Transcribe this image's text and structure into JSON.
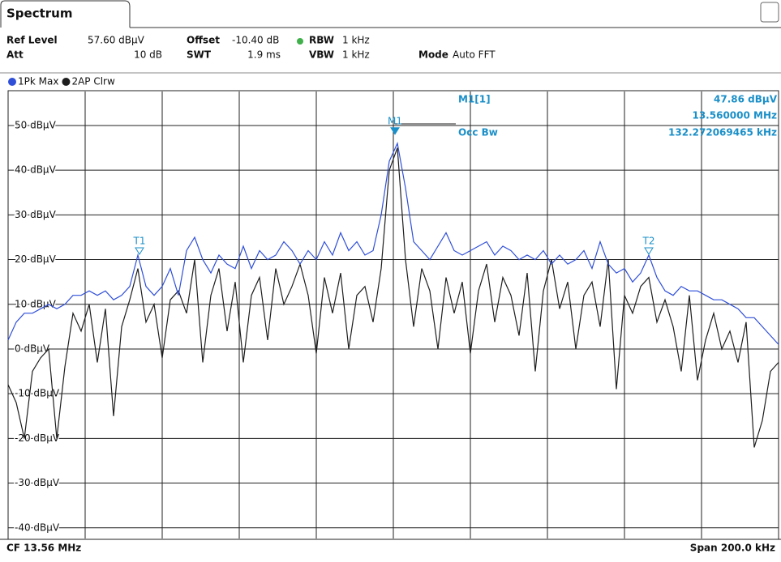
{
  "header": {
    "tab": "Spectrum",
    "ref_level_label": "Ref Level",
    "ref_level": "57.60 dBµV",
    "offset_label": "Offset",
    "offset": "-10.40 dB",
    "rbw_label": "RBW",
    "rbw": "1 kHz",
    "att_label": "Att",
    "att": "10 dB",
    "swt_label": "SWT",
    "swt": "1.9 ms",
    "vbw_label": "VBW",
    "vbw": "1 kHz",
    "mode_label": "Mode",
    "mode": "Auto FFT"
  },
  "chart_data": {
    "type": "line",
    "series": [
      {
        "name": "1Pk Max",
        "color": "#2f4fd8",
        "values": [
          2,
          6,
          8,
          8,
          9,
          10,
          9,
          10,
          12,
          12,
          13,
          12,
          13,
          11,
          12,
          14,
          21,
          14,
          12,
          14,
          18,
          12,
          22,
          25,
          20,
          17,
          21,
          19,
          18,
          23,
          18,
          22,
          20,
          21,
          24,
          22,
          19,
          22,
          20,
          24,
          21,
          26,
          22,
          24,
          21,
          22,
          30,
          42,
          46,
          36,
          24,
          22,
          20,
          23,
          26,
          22,
          21,
          22,
          23,
          24,
          21,
          23,
          22,
          20,
          21,
          20,
          22,
          19,
          21,
          19,
          20,
          22,
          18,
          24,
          19,
          17,
          18,
          15,
          17,
          21,
          16,
          13,
          12,
          14,
          13,
          13,
          12,
          11,
          11,
          10,
          9,
          7,
          7,
          5,
          3,
          1
        ]
      },
      {
        "name": "2AP Clrw",
        "color": "#1e1e1e",
        "values": [
          -8,
          -12,
          -20,
          -5,
          -2,
          0,
          -20,
          -4,
          8,
          4,
          10,
          -3,
          9,
          -15,
          5,
          11,
          18,
          6,
          10,
          -2,
          11,
          13,
          8,
          20,
          -3,
          12,
          18,
          4,
          15,
          -3,
          12,
          16,
          2,
          18,
          10,
          14,
          19,
          12,
          -1,
          16,
          8,
          17,
          0,
          12,
          14,
          6,
          18,
          40,
          45,
          20,
          5,
          18,
          13,
          0,
          16,
          8,
          15,
          -1,
          13,
          19,
          6,
          16,
          12,
          3,
          17,
          -5,
          13,
          20,
          9,
          15,
          0,
          12,
          15,
          5,
          20,
          -9,
          12,
          8,
          14,
          16,
          6,
          11,
          5,
          -5,
          12,
          -7,
          2,
          8,
          0,
          4,
          -3,
          6,
          -22,
          -16,
          -5,
          -3
        ]
      }
    ],
    "ylim": [
      -42.4,
      57.6
    ],
    "yticks": [
      {
        "value": 50,
        "label": "50 dBµV"
      },
      {
        "value": 40,
        "label": "40 dBµV"
      },
      {
        "value": 30,
        "label": "30 dBµV"
      },
      {
        "value": 20,
        "label": "20 dBµV"
      },
      {
        "value": 10,
        "label": "10 dBµV"
      },
      {
        "value": 0,
        "label": "0 dBµV"
      },
      {
        "value": -10,
        "label": "-10 dBµV"
      },
      {
        "value": -20,
        "label": "-20 dBµV"
      },
      {
        "value": -30,
        "label": "-30 dBµV"
      },
      {
        "value": -40,
        "label": "-40 dBµV"
      }
    ],
    "grid": true,
    "markers": [
      {
        "label": "M1",
        "value": 47.86
      },
      {
        "label": "T1",
        "value": 21
      },
      {
        "label": "T2",
        "value": 21
      }
    ],
    "readout": {
      "marker": "M1[1]",
      "level": "47.86 dBµV",
      "frequency": "13.560000 MHz",
      "occ_label": "Occ Bw",
      "occ_bw": "132.272069465 kHz"
    },
    "footer": {
      "center": "CF 13.56 MHz",
      "span": "Span 200.0 kHz"
    }
  }
}
